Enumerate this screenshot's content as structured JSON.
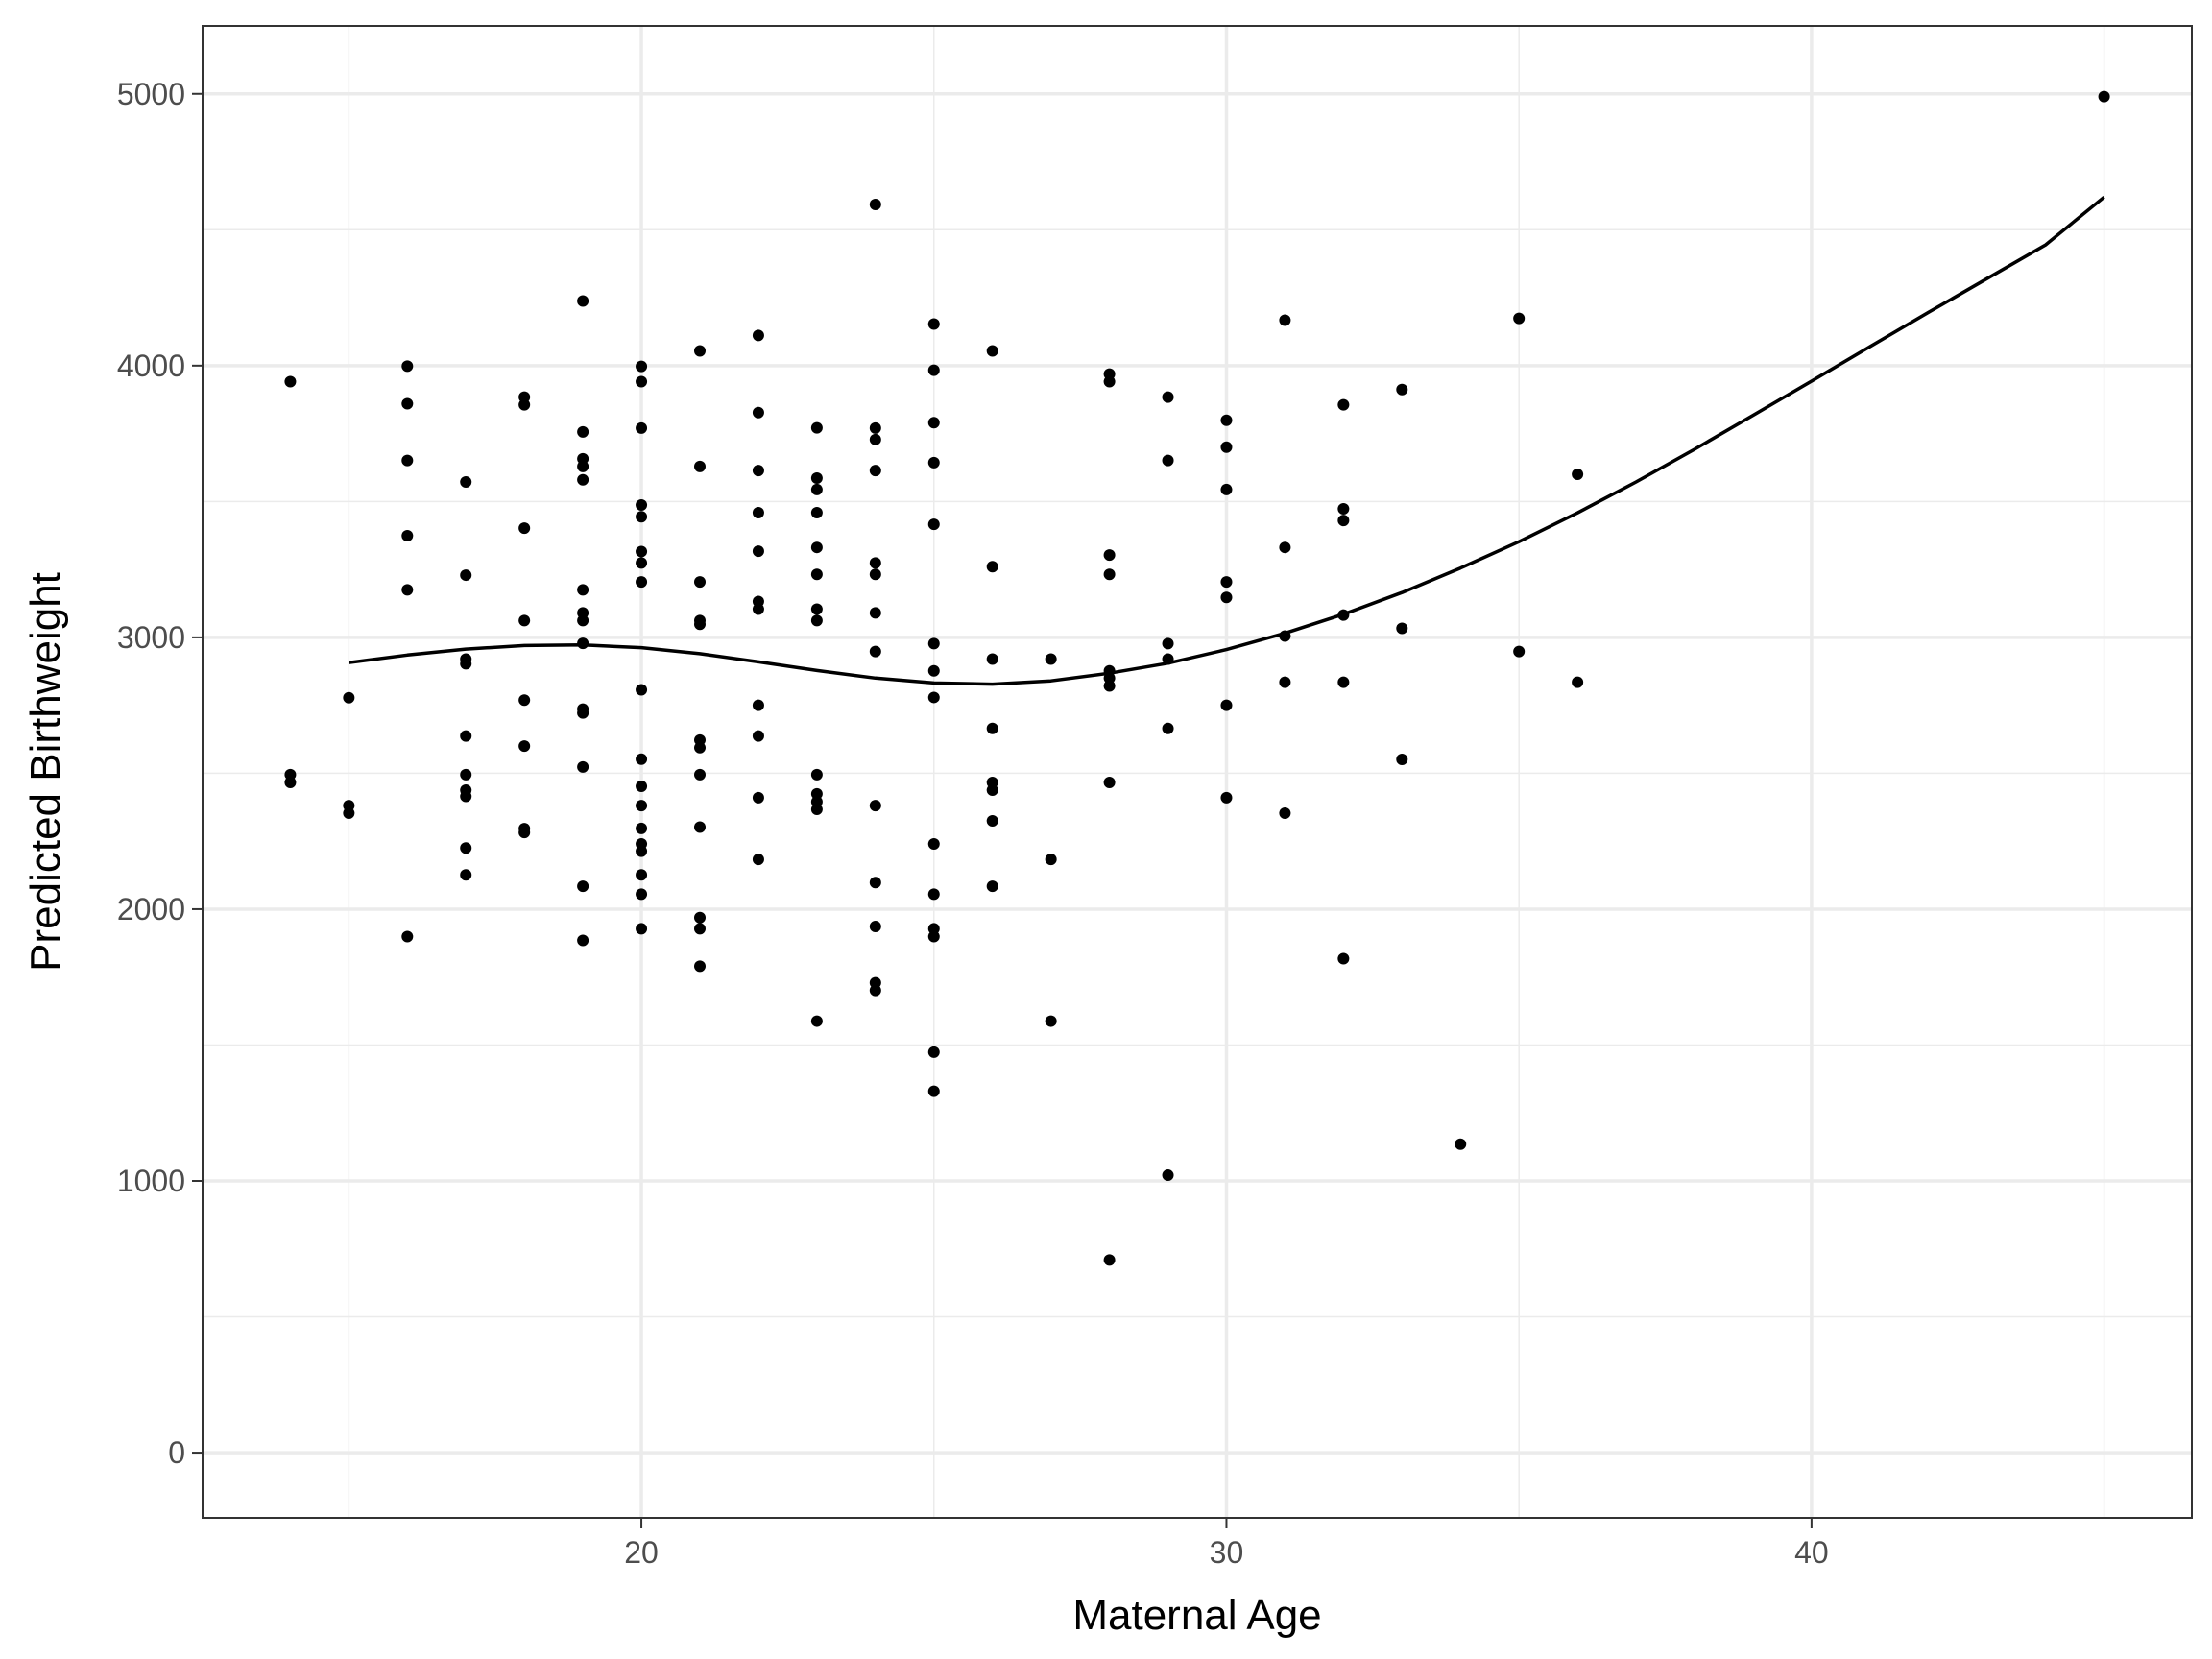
{
  "chart_data": {
    "type": "scatter",
    "title": "",
    "xlabel": "Maternal Age",
    "ylabel": "Predicted Birthweight",
    "xlim": [
      12.5,
      46.5
    ],
    "ylim": [
      -240,
      5250
    ],
    "x_ticks": [
      20,
      30,
      40
    ],
    "x_tick_labels": [
      "20",
      "30",
      "40"
    ],
    "x_minor_ticks": [
      15,
      25,
      35,
      45
    ],
    "y_ticks": [
      0,
      1000,
      2000,
      3000,
      4000,
      5000
    ],
    "y_tick_labels": [
      "0",
      "1000",
      "2000",
      "3000",
      "4000",
      "5000"
    ],
    "y_minor_ticks": [
      500,
      1500,
      2500,
      3500,
      4500
    ],
    "grid": true,
    "colors": {
      "points": "#000000",
      "line": "#000000",
      "grid": "#ebebeb",
      "panel_border": "#333333"
    },
    "series": [
      {
        "type": "scatter",
        "points": [
          [
            14,
            3941
          ],
          [
            14,
            2495
          ],
          [
            14,
            2466
          ],
          [
            15,
            2778
          ],
          [
            15,
            2381
          ],
          [
            15,
            2353
          ],
          [
            16,
            3998
          ],
          [
            16,
            3860
          ],
          [
            16,
            3651
          ],
          [
            16,
            3374
          ],
          [
            16,
            3175
          ],
          [
            16,
            1899
          ],
          [
            17,
            3572
          ],
          [
            17,
            3229
          ],
          [
            17,
            2920
          ],
          [
            17,
            2903
          ],
          [
            17,
            2637
          ],
          [
            17,
            2495
          ],
          [
            17,
            2438
          ],
          [
            17,
            2415
          ],
          [
            17,
            2225
          ],
          [
            17,
            2126
          ],
          [
            18,
            3884
          ],
          [
            18,
            3856
          ],
          [
            18,
            3402
          ],
          [
            18,
            3062
          ],
          [
            18,
            2769
          ],
          [
            18,
            2600
          ],
          [
            18,
            2296
          ],
          [
            18,
            2282
          ],
          [
            19,
            4238
          ],
          [
            19,
            3756
          ],
          [
            19,
            3657
          ],
          [
            19,
            3629
          ],
          [
            19,
            3580
          ],
          [
            19,
            3175
          ],
          [
            19,
            3090
          ],
          [
            19,
            3062
          ],
          [
            19,
            2978
          ],
          [
            19,
            2736
          ],
          [
            19,
            2722
          ],
          [
            19,
            2523
          ],
          [
            19,
            2084
          ],
          [
            19,
            1885
          ],
          [
            20,
            3997
          ],
          [
            20,
            3941
          ],
          [
            20,
            3770
          ],
          [
            20,
            3487
          ],
          [
            20,
            3444
          ],
          [
            20,
            3316
          ],
          [
            20,
            3274
          ],
          [
            20,
            3204
          ],
          [
            20,
            2807
          ],
          [
            20,
            2552
          ],
          [
            20,
            2452
          ],
          [
            20,
            2381
          ],
          [
            20,
            2297
          ],
          [
            20,
            2240
          ],
          [
            20,
            2213
          ],
          [
            20,
            2126
          ],
          [
            20,
            2055
          ],
          [
            20,
            1928
          ],
          [
            21,
            4054
          ],
          [
            21,
            3629
          ],
          [
            21,
            3204
          ],
          [
            21,
            3062
          ],
          [
            21,
            3048
          ],
          [
            21,
            2622
          ],
          [
            21,
            2594
          ],
          [
            21,
            2495
          ],
          [
            21,
            2302
          ],
          [
            21,
            1969
          ],
          [
            21,
            1928
          ],
          [
            21,
            1790
          ],
          [
            22,
            4111
          ],
          [
            22,
            3827
          ],
          [
            22,
            3614
          ],
          [
            22,
            3459
          ],
          [
            22,
            3317
          ],
          [
            22,
            3132
          ],
          [
            22,
            3104
          ],
          [
            22,
            2750
          ],
          [
            22,
            2637
          ],
          [
            22,
            2410
          ],
          [
            22,
            2183
          ],
          [
            23,
            3771
          ],
          [
            23,
            3586
          ],
          [
            23,
            3544
          ],
          [
            23,
            3459
          ],
          [
            23,
            3331
          ],
          [
            23,
            3232
          ],
          [
            23,
            3104
          ],
          [
            23,
            3062
          ],
          [
            23,
            2495
          ],
          [
            23,
            2424
          ],
          [
            23,
            2395
          ],
          [
            23,
            2367
          ],
          [
            23,
            1588
          ],
          [
            24,
            4593
          ],
          [
            24,
            3770
          ],
          [
            24,
            3728
          ],
          [
            24,
            3614
          ],
          [
            24,
            3274
          ],
          [
            24,
            3232
          ],
          [
            24,
            3090
          ],
          [
            24,
            2948
          ],
          [
            24,
            2381
          ],
          [
            24,
            2098
          ],
          [
            24,
            1936
          ],
          [
            24,
            1729
          ],
          [
            24,
            1701
          ],
          [
            25,
            4153
          ],
          [
            25,
            3983
          ],
          [
            25,
            3790
          ],
          [
            25,
            3643
          ],
          [
            25,
            3416
          ],
          [
            25,
            2977
          ],
          [
            25,
            2877
          ],
          [
            25,
            2779
          ],
          [
            25,
            2240
          ],
          [
            25,
            2055
          ],
          [
            25,
            1928
          ],
          [
            25,
            1899
          ],
          [
            25,
            1474
          ],
          [
            25,
            1330
          ],
          [
            26,
            4054
          ],
          [
            26,
            3260
          ],
          [
            26,
            2920
          ],
          [
            26,
            2665
          ],
          [
            26,
            2466
          ],
          [
            26,
            2438
          ],
          [
            26,
            2325
          ],
          [
            26,
            2084
          ],
          [
            27,
            2920
          ],
          [
            27,
            2183
          ],
          [
            27,
            1588
          ],
          [
            28,
            3969
          ],
          [
            28,
            3941
          ],
          [
            28,
            3303
          ],
          [
            28,
            3232
          ],
          [
            28,
            2877
          ],
          [
            28,
            2850
          ],
          [
            28,
            2821
          ],
          [
            28,
            2466
          ],
          [
            28,
            709
          ],
          [
            29,
            3884
          ],
          [
            29,
            3651
          ],
          [
            29,
            2977
          ],
          [
            29,
            2920
          ],
          [
            29,
            2665
          ],
          [
            29,
            1021
          ],
          [
            30,
            3799
          ],
          [
            30,
            3700
          ],
          [
            30,
            3544
          ],
          [
            30,
            3204
          ],
          [
            30,
            3147
          ],
          [
            30,
            2750
          ],
          [
            30,
            2410
          ],
          [
            31,
            4167
          ],
          [
            31,
            3331
          ],
          [
            31,
            3005
          ],
          [
            31,
            2835
          ],
          [
            31,
            2353
          ],
          [
            32,
            3856
          ],
          [
            32,
            3473
          ],
          [
            32,
            3430
          ],
          [
            32,
            3082
          ],
          [
            32,
            2835
          ],
          [
            32,
            1818
          ],
          [
            33,
            3912
          ],
          [
            33,
            3033
          ],
          [
            33,
            2551
          ],
          [
            34,
            1135
          ],
          [
            35,
            4174
          ],
          [
            35,
            2948
          ],
          [
            36,
            3600
          ],
          [
            36,
            2835
          ],
          [
            45,
            4990
          ]
        ]
      },
      {
        "type": "line",
        "points": [
          [
            15,
            2907
          ],
          [
            16,
            2935
          ],
          [
            17,
            2957
          ],
          [
            18,
            2970
          ],
          [
            19,
            2972
          ],
          [
            20,
            2962
          ],
          [
            21,
            2940
          ],
          [
            22,
            2910
          ],
          [
            23,
            2878
          ],
          [
            24,
            2850
          ],
          [
            25,
            2832
          ],
          [
            26,
            2828
          ],
          [
            27,
            2840
          ],
          [
            28,
            2868
          ],
          [
            29,
            2905
          ],
          [
            30,
            2955
          ],
          [
            31,
            3015
          ],
          [
            32,
            3085
          ],
          [
            33,
            3165
          ],
          [
            34,
            3255
          ],
          [
            35,
            3352
          ],
          [
            36,
            3458
          ],
          [
            37,
            3572
          ],
          [
            38,
            3692
          ],
          [
            39,
            3817
          ],
          [
            40,
            3943
          ],
          [
            41,
            4070
          ],
          [
            42,
            4196
          ],
          [
            43,
            4320
          ],
          [
            44,
            4444
          ],
          [
            45,
            4620
          ]
        ]
      }
    ]
  }
}
